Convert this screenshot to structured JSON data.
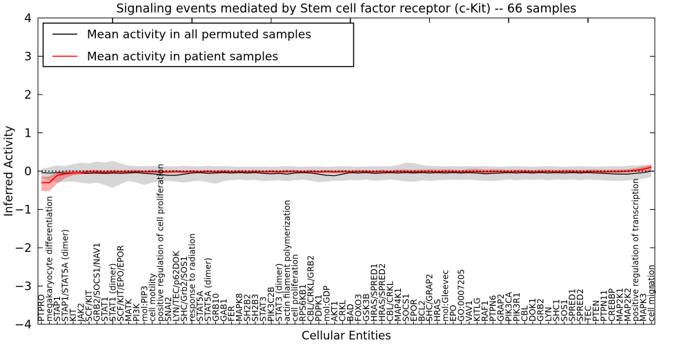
{
  "chart_data": {
    "type": "line",
    "title": "Signaling events mediated by Stem cell factor receptor (c-Kit) -- 66 samples",
    "xlabel": "Cellular Entities",
    "ylabel": "Inferred Activity",
    "ylim": [
      -4,
      4
    ],
    "yticks": [
      -4,
      -3,
      -2,
      -1,
      0,
      1,
      2,
      3,
      4
    ],
    "yticklabels": [
      "−4",
      "−3",
      "−2",
      "−1",
      "0",
      "1",
      "2",
      "3",
      "4"
    ],
    "x_major_tick_interval": 10,
    "grid": false,
    "legend_position": "upper left",
    "categories": [
      "PTPRO",
      "megakaryocyte differentiation",
      "STAP1",
      "STAP1/STAT5A (dimer)",
      "KIT",
      "JAK2",
      "SCF/KIT",
      "GRB2/SOCS1/NAV1",
      "STAT1",
      "STAT1 (dimer)",
      "SCF/KIT/EPO/EPOR",
      "MATK",
      "PI3K",
      "mol:PIP3",
      "cell motility",
      "positive regulation of cell proliferation",
      "SNAI2",
      "LYN/TEC/p62DOK",
      "SHC/Grb2/SOS1",
      "response to radiation",
      "STAT5A",
      "STAT5A (dimer)",
      "GRB10",
      "GAB1",
      "FER",
      "MAPK8",
      "SH2B2",
      "SH2B3",
      "STAT3",
      "PIK3C2B",
      "STAT3 (dimer)",
      "actin filament polymerization",
      "cell proliferation",
      "RPS6KB1",
      "CBL/CRKL/GRB2",
      "PDPK1",
      "mol:GDP",
      "AKT1",
      "CRKL",
      "BAD",
      "FOXO3",
      "GSK3B",
      "HRAS/SPRED1",
      "HRAS/SPRED2",
      "CBL/CRKL",
      "MAP4K1",
      "SOCS1",
      "EPOR",
      "BCL2",
      "SHC/GRAP2",
      "HRAS",
      "mol:Gleevec",
      "EPO",
      "GO:0007205",
      "VAV1",
      "KITLG",
      "RAF1",
      "PTPN6",
      "GRAP2",
      "PIK3CA",
      "PIK3R1",
      "CBL",
      "DOK1",
      "GRB2",
      "LYN",
      "SHC1",
      "SOS1",
      "SPRED1",
      "SPRED2",
      "TEC",
      "PTEN",
      "PTPN11",
      "CREBBP",
      "MAP2K1",
      "MAP2K2",
      "positive regulation of transcription",
      "MAPK3",
      "cell migration"
    ],
    "series": [
      {
        "name": "Mean activity in all permuted samples",
        "color": "#000000",
        "values": [
          -0.04,
          -0.05,
          -0.04,
          -0.05,
          -0.04,
          -0.05,
          -0.06,
          -0.05,
          -0.06,
          -0.05,
          -0.06,
          -0.05,
          -0.04,
          -0.06,
          -0.07,
          -0.09,
          -0.11,
          -0.11,
          -0.08,
          -0.05,
          -0.04,
          -0.06,
          -0.05,
          -0.04,
          -0.05,
          -0.04,
          -0.05,
          -0.04,
          -0.06,
          -0.07,
          -0.06,
          -0.08,
          -0.05,
          -0.04,
          -0.05,
          -0.08,
          -0.11,
          -0.12,
          -0.08,
          -0.04,
          -0.05,
          -0.04,
          -0.06,
          -0.05,
          -0.04,
          -0.05,
          -0.04,
          -0.05,
          -0.04,
          -0.05,
          -0.04,
          -0.05,
          -0.04,
          -0.05,
          -0.04,
          -0.05,
          -0.07,
          -0.06,
          -0.05,
          -0.04,
          -0.05,
          -0.04,
          -0.05,
          -0.04,
          -0.05,
          -0.04,
          -0.05,
          -0.04,
          -0.05,
          -0.04,
          -0.05,
          -0.06,
          -0.07,
          -0.08,
          -0.08,
          -0.06,
          -0.04,
          0.0
        ],
        "band": {
          "fill": "rgba(0,0,0,0.16)",
          "upper": [
            0.06,
            0.1,
            0.15,
            0.13,
            0.18,
            0.22,
            0.2,
            0.25,
            0.22,
            0.27,
            0.2,
            0.15,
            0.13,
            0.13,
            0.14,
            0.12,
            0.13,
            0.12,
            0.14,
            0.13,
            0.12,
            0.14,
            0.12,
            0.13,
            0.12,
            0.11,
            0.12,
            0.11,
            0.12,
            0.11,
            0.12,
            0.13,
            0.12,
            0.11,
            0.12,
            0.12,
            0.11,
            0.12,
            0.13,
            0.12,
            0.11,
            0.12,
            0.13,
            0.12,
            0.13,
            0.16,
            0.22,
            0.21,
            0.16,
            0.14,
            0.13,
            0.12,
            0.13,
            0.12,
            0.13,
            0.12,
            0.13,
            0.12,
            0.11,
            0.12,
            0.13,
            0.12,
            0.11,
            0.12,
            0.13,
            0.12,
            0.11,
            0.12,
            0.13,
            0.12,
            0.11,
            0.12,
            0.13,
            0.12,
            0.14,
            0.15,
            0.16,
            0.15
          ],
          "lower": [
            -0.18,
            -0.24,
            -0.3,
            -0.28,
            -0.27,
            -0.3,
            -0.33,
            -0.3,
            -0.36,
            -0.44,
            -0.34,
            -0.26,
            -0.3,
            -0.36,
            -0.3,
            -0.27,
            -0.25,
            -0.28,
            -0.3,
            -0.27,
            -0.25,
            -0.29,
            -0.33,
            -0.26,
            -0.24,
            -0.22,
            -0.24,
            -0.23,
            -0.26,
            -0.25,
            -0.24,
            -0.26,
            -0.24,
            -0.22,
            -0.25,
            -0.29,
            -0.27,
            -0.25,
            -0.25,
            -0.23,
            -0.24,
            -0.22,
            -0.25,
            -0.24,
            -0.22,
            -0.24,
            -0.27,
            -0.28,
            -0.24,
            -0.26,
            -0.24,
            -0.23,
            -0.22,
            -0.23,
            -0.22,
            -0.24,
            -0.25,
            -0.26,
            -0.24,
            -0.22,
            -0.24,
            -0.22,
            -0.23,
            -0.22,
            -0.24,
            -0.22,
            -0.23,
            -0.22,
            -0.24,
            -0.22,
            -0.23,
            -0.24,
            -0.25,
            -0.26,
            -0.24,
            -0.22,
            -0.2,
            -0.15
          ]
        }
      },
      {
        "name": "Mean activity in patient samples",
        "color": "#ff0000",
        "values": [
          -0.3,
          -0.3,
          -0.11,
          -0.07,
          -0.05,
          -0.04,
          -0.02,
          -0.02,
          -0.03,
          -0.02,
          -0.02,
          -0.02,
          -0.01,
          -0.02,
          -0.01,
          -0.02,
          -0.02,
          -0.01,
          -0.02,
          -0.01,
          -0.02,
          -0.01,
          -0.02,
          -0.01,
          -0.02,
          -0.01,
          -0.02,
          -0.01,
          -0.02,
          -0.01,
          -0.02,
          -0.01,
          -0.01,
          -0.02,
          -0.01,
          -0.02,
          -0.01,
          -0.02,
          -0.01,
          -0.02,
          -0.01,
          -0.01,
          -0.02,
          -0.01,
          -0.02,
          -0.01,
          -0.01,
          -0.02,
          -0.01,
          -0.01,
          -0.02,
          -0.01,
          -0.01,
          -0.02,
          -0.01,
          -0.01,
          -0.02,
          -0.01,
          -0.01,
          -0.02,
          -0.01,
          -0.01,
          -0.02,
          -0.01,
          -0.01,
          -0.02,
          -0.01,
          -0.01,
          -0.02,
          -0.01,
          -0.01,
          -0.02,
          -0.01,
          -0.01,
          0.0,
          0.02,
          0.05,
          0.1
        ],
        "band": {
          "fill": "rgba(255,0,0,0.32)",
          "upper": [
            -0.15,
            -0.14,
            -0.02,
            0.01,
            0.02,
            0.02,
            0.03,
            0.03,
            0.02,
            0.03,
            0.02,
            0.03,
            0.03,
            0.02,
            0.03,
            0.02,
            0.03,
            0.03,
            0.02,
            0.03,
            0.02,
            0.03,
            0.02,
            0.03,
            0.02,
            0.03,
            0.02,
            0.03,
            0.02,
            0.03,
            0.02,
            0.03,
            0.03,
            0.02,
            0.03,
            0.02,
            0.03,
            0.02,
            0.03,
            0.02,
            0.03,
            0.03,
            0.02,
            0.03,
            0.02,
            0.04,
            0.04,
            0.03,
            0.04,
            0.05,
            0.04,
            0.05,
            0.04,
            0.03,
            0.06,
            0.06,
            0.04,
            0.05,
            0.04,
            0.03,
            0.04,
            0.04,
            0.03,
            0.04,
            0.04,
            0.03,
            0.04,
            0.04,
            0.03,
            0.04,
            0.04,
            0.03,
            0.04,
            0.04,
            0.05,
            0.08,
            0.12,
            0.18
          ],
          "lower": [
            -0.52,
            -0.52,
            -0.32,
            -0.18,
            -0.11,
            -0.08,
            -0.07,
            -0.07,
            -0.08,
            -0.07,
            -0.06,
            -0.06,
            -0.05,
            -0.06,
            -0.05,
            -0.06,
            -0.06,
            -0.05,
            -0.06,
            -0.05,
            -0.06,
            -0.05,
            -0.06,
            -0.05,
            -0.06,
            -0.05,
            -0.06,
            -0.05,
            -0.06,
            -0.05,
            -0.06,
            -0.05,
            -0.05,
            -0.06,
            -0.05,
            -0.06,
            -0.05,
            -0.06,
            -0.05,
            -0.06,
            -0.05,
            -0.05,
            -0.06,
            -0.05,
            -0.06,
            -0.05,
            -0.05,
            -0.06,
            -0.05,
            -0.05,
            -0.06,
            -0.05,
            -0.05,
            -0.06,
            -0.06,
            -0.06,
            -0.06,
            -0.06,
            -0.05,
            -0.06,
            -0.05,
            -0.05,
            -0.06,
            -0.05,
            -0.05,
            -0.06,
            -0.05,
            -0.05,
            -0.06,
            -0.05,
            -0.05,
            -0.06,
            -0.05,
            -0.05,
            -0.05,
            -0.03,
            -0.02,
            0.02
          ]
        }
      }
    ],
    "zero_line": {
      "value": 0,
      "style": "dotted",
      "color": "#000000"
    }
  }
}
